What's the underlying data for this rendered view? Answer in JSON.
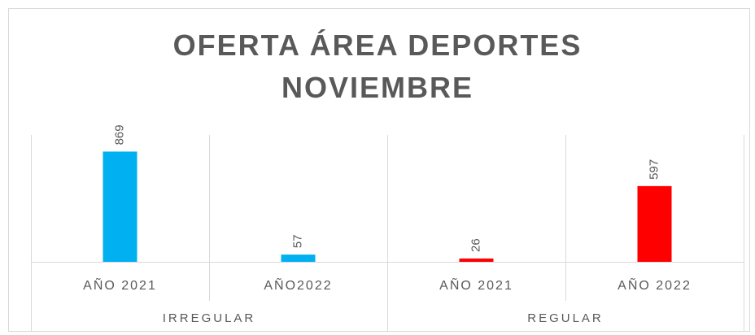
{
  "chart_data": {
    "type": "bar",
    "title": "OFERTA ÁREA DEPORTES NOVIEMBRE",
    "categories": [
      "AÑO 2021",
      "AÑO2022",
      "AÑO 2021",
      "AÑO 2022"
    ],
    "groups": [
      "IRREGULAR",
      "REGULAR"
    ],
    "values": [
      869,
      57,
      26,
      597
    ],
    "colors": [
      "#00b0f0",
      "#00b0f0",
      "#ff0000",
      "#ff0000"
    ],
    "ylim": [
      0,
      1000
    ]
  }
}
